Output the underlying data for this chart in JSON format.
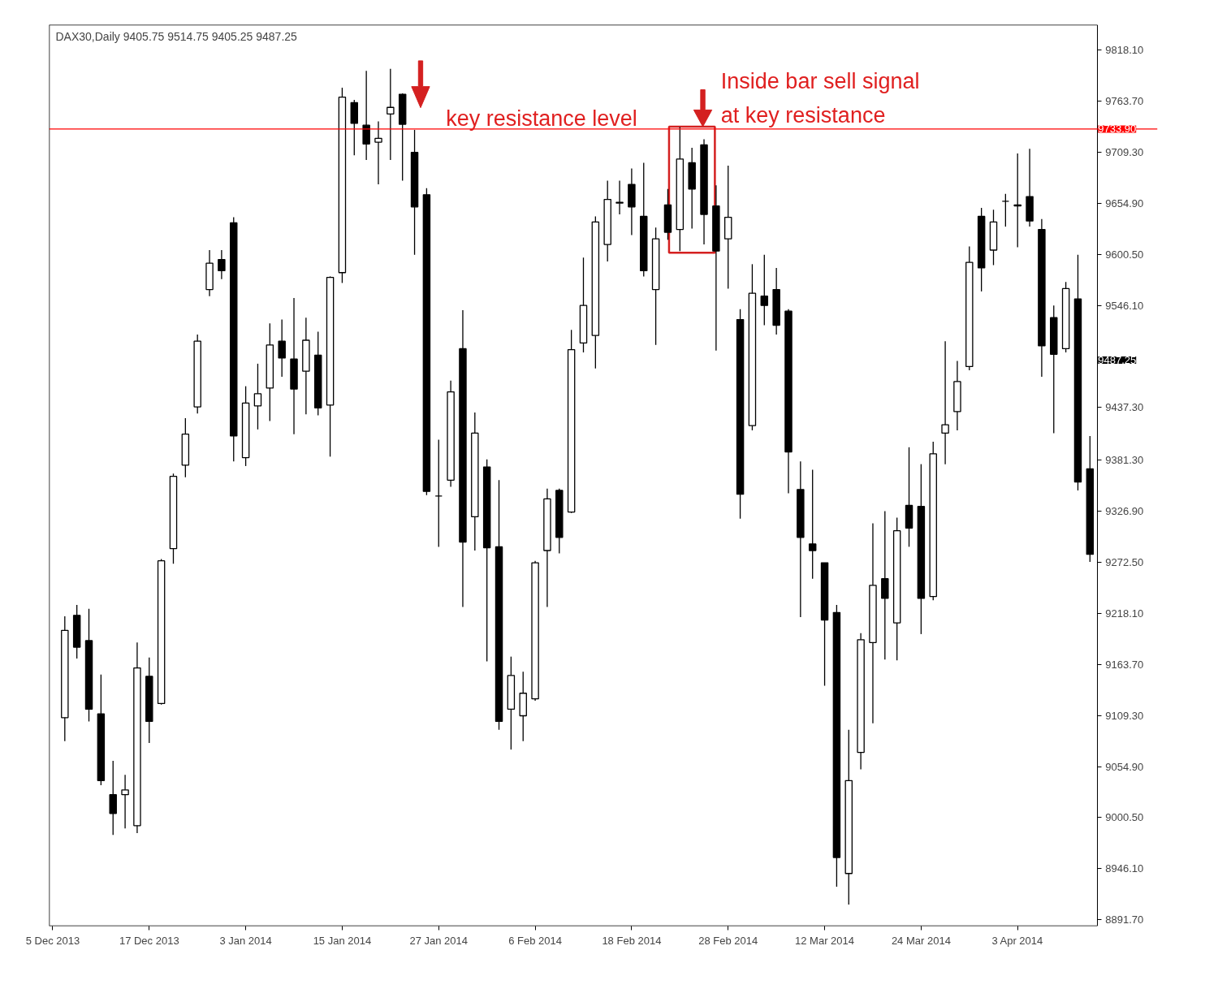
{
  "chart_data": {
    "type": "candlestick",
    "title": "DAX30,Daily  9405.75 9514.75 9405.25 9487.25",
    "categories": [
      "5 Dec 2013",
      null,
      null,
      null,
      null,
      null,
      null,
      null,
      "17 Dec 2013",
      null,
      null,
      null,
      null,
      null,
      null,
      null,
      "3 Jan 2014",
      null,
      null,
      null,
      null,
      null,
      null,
      null,
      "15 Jan 2014",
      null,
      null,
      null,
      null,
      null,
      null,
      null,
      "27 Jan 2014",
      null,
      null,
      null,
      null,
      null,
      null,
      null,
      "6 Feb 2014",
      null,
      null,
      null,
      null,
      null,
      null,
      null,
      "18 Feb 2014",
      null,
      null,
      null,
      null,
      null,
      null,
      null,
      "28 Feb 2014",
      null,
      null,
      null,
      null,
      null,
      null,
      null,
      "12 Mar 2014",
      null,
      null,
      null,
      null,
      null,
      null,
      null,
      "24 Mar 2014",
      null,
      null,
      null,
      null,
      null,
      null,
      null,
      "3 Apr 2014",
      null,
      null,
      null,
      null,
      null,
      null
    ],
    "ohlc": [
      null,
      [
        9107,
        9215,
        9082,
        9200
      ],
      [
        9216,
        9227,
        9170,
        9182
      ],
      [
        9189,
        9223,
        9103,
        9116
      ],
      [
        9111,
        9153,
        9035,
        9040
      ],
      [
        9025,
        9061,
        8982,
        9005
      ],
      [
        9025,
        9046,
        8989,
        9030
      ],
      [
        8992,
        9187,
        8984,
        9160
      ],
      [
        9151,
        9171,
        9080,
        9103
      ],
      [
        9122,
        9276,
        9121,
        9274
      ],
      [
        9287,
        9367,
        9271,
        9364
      ],
      [
        9376,
        9426,
        9363,
        9409
      ],
      [
        9438,
        9515,
        9431,
        9508
      ],
      [
        9563,
        9605,
        9556,
        9591
      ],
      [
        9595,
        9605,
        9574,
        9583
      ],
      [
        9634,
        9640,
        9380,
        9407
      ],
      [
        9384,
        9460,
        9375,
        9442
      ],
      [
        9439,
        9484,
        9414,
        9452
      ],
      [
        9458,
        9527,
        9423,
        9504
      ],
      [
        9508,
        9531,
        9470,
        9490
      ],
      [
        9489,
        9554,
        9409,
        9457
      ],
      [
        9476,
        9533,
        9430,
        9509
      ],
      [
        9493,
        9518,
        9429,
        9437
      ],
      [
        9440,
        9577,
        9385,
        9576
      ],
      [
        9581,
        9778,
        9570,
        9768
      ],
      [
        9762,
        9765,
        9706,
        9740
      ],
      [
        9738,
        9796,
        9701,
        9718
      ],
      [
        9720,
        9742,
        9675,
        9724
      ],
      [
        9750,
        9798,
        9701,
        9757
      ],
      [
        9771,
        9772,
        9679,
        9739
      ],
      [
        9709,
        9733,
        9600,
        9651
      ],
      [
        9664,
        9671,
        9344,
        9348
      ],
      [
        9343,
        9403,
        9289,
        9343
      ],
      [
        9360,
        9466,
        9353,
        9454
      ],
      [
        9500,
        9541,
        9225,
        9294
      ],
      [
        9321,
        9432,
        9285,
        9410
      ],
      [
        9374,
        9382,
        9167,
        9288
      ],
      [
        9289,
        9360,
        9094,
        9103
      ],
      [
        9116,
        9172,
        9073,
        9152
      ],
      [
        9109,
        9156,
        9082,
        9133
      ],
      [
        9127,
        9274,
        9125,
        9272
      ],
      [
        9285,
        9351,
        9225,
        9340
      ],
      [
        9349,
        9351,
        9282,
        9299
      ],
      [
        9326,
        9520,
        9325,
        9499
      ],
      [
        9506,
        9597,
        9496,
        9546
      ],
      [
        9514,
        9641,
        9479,
        9635
      ],
      [
        9611,
        9679,
        9593,
        9659
      ],
      [
        9655,
        9679,
        9643,
        9656
      ],
      [
        9675,
        9692,
        9621,
        9651
      ],
      [
        9641,
        9698,
        9577,
        9583
      ],
      [
        9563,
        9629,
        9504,
        9617
      ],
      [
        9653,
        9670,
        9616,
        9624
      ],
      [
        9627,
        9736,
        9604,
        9702
      ],
      [
        9698,
        9714,
        9628,
        9670
      ],
      [
        9717,
        9723,
        9611,
        9643
      ],
      [
        9652,
        9674,
        9498,
        9604
      ],
      [
        9617,
        9695,
        9564,
        9640
      ],
      [
        9531,
        9542,
        9319,
        9345
      ],
      [
        9418,
        9590,
        9413,
        9559
      ],
      [
        9556,
        9600,
        9525,
        9546
      ],
      [
        9563,
        9586,
        9515,
        9525
      ],
      [
        9540,
        9542,
        9346,
        9390
      ],
      [
        9350,
        9380,
        9214,
        9299
      ],
      [
        9292,
        9371,
        9255,
        9285
      ],
      [
        9272,
        9272,
        9141,
        9211
      ],
      [
        9219,
        9227,
        8927,
        8958
      ],
      [
        8941,
        9094,
        8908,
        9040
      ],
      [
        9070,
        9197,
        9052,
        9190
      ],
      [
        9187,
        9314,
        9101,
        9248
      ],
      [
        9255,
        9327,
        9169,
        9234
      ],
      [
        9208,
        9320,
        9168,
        9306
      ],
      [
        9333,
        9395,
        9289,
        9309
      ],
      [
        9332,
        9377,
        9196,
        9234
      ],
      [
        9236,
        9401,
        9232,
        9388
      ],
      [
        9410,
        9508,
        9377,
        9419
      ],
      [
        9433,
        9487,
        9413,
        9465
      ],
      [
        9481,
        9609,
        9477,
        9592
      ],
      [
        9641,
        9650,
        9561,
        9586
      ],
      [
        9605,
        9648,
        9589,
        9635
      ],
      [
        9657,
        9665,
        9630,
        9657
      ],
      [
        9653,
        9708,
        9608,
        9652
      ],
      [
        9662,
        9713,
        9630,
        9636
      ],
      [
        9627,
        9638,
        9470,
        9503
      ],
      [
        9533,
        9546,
        9410,
        9494
      ],
      [
        9500,
        9571,
        9496,
        9564
      ],
      [
        9553,
        9600,
        9349,
        9358
      ],
      [
        9372,
        9407,
        9273,
        9281
      ]
    ],
    "ylim": [
      8885,
      9845
    ],
    "yticks": [
      {
        "value": 9818.1,
        "label": "9818.10"
      },
      {
        "value": 9763.7,
        "label": "9763.70"
      },
      {
        "value": 9709.3,
        "label": "9709.30"
      },
      {
        "value": 9654.9,
        "label": "9654.90"
      },
      {
        "value": 9600.5,
        "label": "9600.50"
      },
      {
        "value": 9546.1,
        "label": "9546.10"
      },
      {
        "value": 9437.3,
        "label": "9437.30"
      },
      {
        "value": 9381.3,
        "label": "9381.30"
      },
      {
        "value": 9326.9,
        "label": "9326.90"
      },
      {
        "value": 9272.5,
        "label": "9272.50"
      },
      {
        "value": 9218.1,
        "label": "9218.10"
      },
      {
        "value": 9163.7,
        "label": "9163.70"
      },
      {
        "value": 9109.3,
        "label": "9109.30"
      },
      {
        "value": 9054.9,
        "label": "9054.90"
      },
      {
        "value": 9000.5,
        "label": "9000.50"
      },
      {
        "value": 8946.1,
        "label": "8946.10"
      },
      {
        "value": 8891.7,
        "label": "8891.70"
      }
    ],
    "ref_lines": [
      {
        "axis": "y",
        "value": 9733.9,
        "label": "9733.90",
        "color": "#ff0000"
      }
    ],
    "annotations": [
      "key resistance level",
      "Inside bar sell signal",
      "at key resistance",
      "9487.25"
    ],
    "grid": false
  }
}
